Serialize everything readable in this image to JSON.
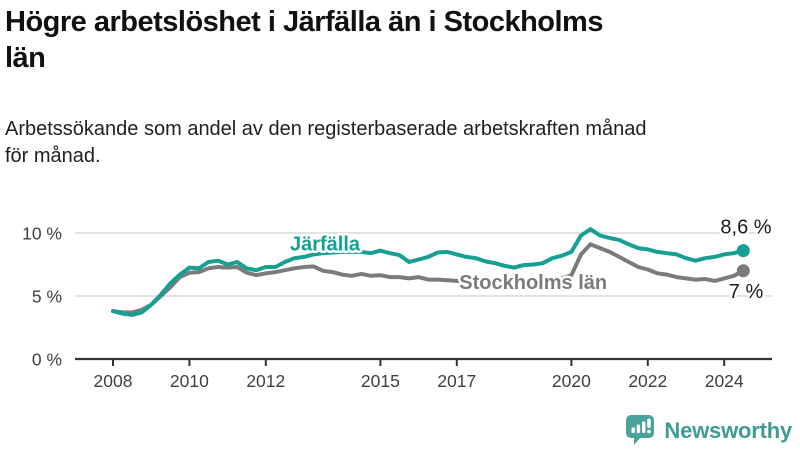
{
  "page": {
    "title": "Högre arbetslöshet i Järfälla än i Stockholms\nlän",
    "subtitle": "Arbetssökande som andel av den registerbaserade arbetskraften månad\nför månad."
  },
  "branding": {
    "name": "Newsworthy",
    "logo_icon": "speech-bubble-bar-chart-icon",
    "icon_color": "#4BA39B",
    "text_color": "#3E9B92"
  },
  "chart_data": {
    "type": "line",
    "title": "Högre arbetslöshet i Järfälla än i Stockholms län",
    "subtitle": "Arbetssökande som andel av den registerbaserade arbetskraften månad för månad.",
    "x_unit": "year (decimal, monthly data shown quarterly-sampled)",
    "xlim": [
      2007.0,
      2025.3
    ],
    "ylim": [
      0,
      11.6
    ],
    "grid": "horizontal",
    "grid_color": "#d8d8d8",
    "axis_color": "#333333",
    "x": [
      2008,
      2008.25,
      2008.5,
      2008.75,
      2009,
      2009.25,
      2009.5,
      2009.75,
      2010,
      2010.25,
      2010.5,
      2010.75,
      2011,
      2011.25,
      2011.5,
      2011.75,
      2012,
      2012.25,
      2012.5,
      2012.75,
      2013,
      2013.25,
      2013.5,
      2013.75,
      2014,
      2014.25,
      2014.5,
      2014.75,
      2015,
      2015.25,
      2015.5,
      2015.75,
      2016,
      2016.25,
      2016.5,
      2016.75,
      2017,
      2017.25,
      2017.5,
      2017.75,
      2018,
      2018.25,
      2018.5,
      2018.75,
      2019,
      2019.25,
      2019.5,
      2019.75,
      2020,
      2020.25,
      2020.5,
      2020.75,
      2021,
      2021.25,
      2021.5,
      2021.75,
      2022,
      2022.25,
      2022.5,
      2022.75,
      2023,
      2023.25,
      2023.5,
      2023.75,
      2024,
      2024.25,
      2024.5
    ],
    "series": [
      {
        "name": "Järfälla",
        "color": "#16A093",
        "end_label": "8,6 %",
        "end_value": 8.6,
        "label_pos": {
          "year": 2013.55,
          "value": 9.15
        },
        "values": [
          3.8,
          3.6,
          3.5,
          3.7,
          4.3,
          5.1,
          6.0,
          6.7,
          7.25,
          7.2,
          7.7,
          7.8,
          7.5,
          7.7,
          7.2,
          7.05,
          7.3,
          7.3,
          7.7,
          8.0,
          8.1,
          8.3,
          8.4,
          8.45,
          8.5,
          8.5,
          8.5,
          8.4,
          8.6,
          8.4,
          8.25,
          7.7,
          7.9,
          8.1,
          8.45,
          8.5,
          8.3,
          8.1,
          8.0,
          7.75,
          7.6,
          7.4,
          7.25,
          7.45,
          7.5,
          7.6,
          8.0,
          8.2,
          8.5,
          9.8,
          10.3,
          9.8,
          9.6,
          9.45,
          9.1,
          8.8,
          8.7,
          8.5,
          8.4,
          8.3,
          8.0,
          7.8,
          8.0,
          8.1,
          8.3,
          8.4,
          8.6
        ]
      },
      {
        "name": "Stockholms län",
        "color": "#7B7B7B",
        "end_label": "7 %",
        "end_value": 7.0,
        "label_pos": {
          "year": 2019.0,
          "value": 6.1
        },
        "values": [
          3.8,
          3.7,
          3.7,
          3.9,
          4.3,
          5.0,
          5.7,
          6.5,
          6.85,
          6.9,
          7.2,
          7.3,
          7.25,
          7.3,
          6.85,
          6.65,
          6.8,
          6.9,
          7.05,
          7.2,
          7.3,
          7.35,
          7.0,
          6.9,
          6.7,
          6.6,
          6.75,
          6.6,
          6.65,
          6.5,
          6.5,
          6.4,
          6.5,
          6.3,
          6.3,
          6.25,
          6.2,
          6.15,
          6.1,
          6.05,
          6.0,
          6.0,
          6.0,
          6.05,
          6.1,
          6.15,
          6.25,
          6.4,
          6.65,
          8.3,
          9.1,
          8.8,
          8.5,
          8.1,
          7.7,
          7.3,
          7.1,
          6.8,
          6.7,
          6.5,
          6.4,
          6.3,
          6.35,
          6.2,
          6.4,
          6.6,
          7.0
        ]
      }
    ],
    "yticks": [
      {
        "label": "0 %",
        "value": 0
      },
      {
        "label": "5 %",
        "value": 5
      },
      {
        "label": "10 %",
        "value": 10
      }
    ],
    "xticks": [
      {
        "label": "2008",
        "value": 2008
      },
      {
        "label": "2010",
        "value": 2010
      },
      {
        "label": "2012",
        "value": 2012
      },
      {
        "label": "2015",
        "value": 2015
      },
      {
        "label": "2017",
        "value": 2017
      },
      {
        "label": "2020",
        "value": 2020
      },
      {
        "label": "2022",
        "value": 2022
      },
      {
        "label": "2024",
        "value": 2024
      }
    ],
    "legend_position": "inline-labels"
  }
}
